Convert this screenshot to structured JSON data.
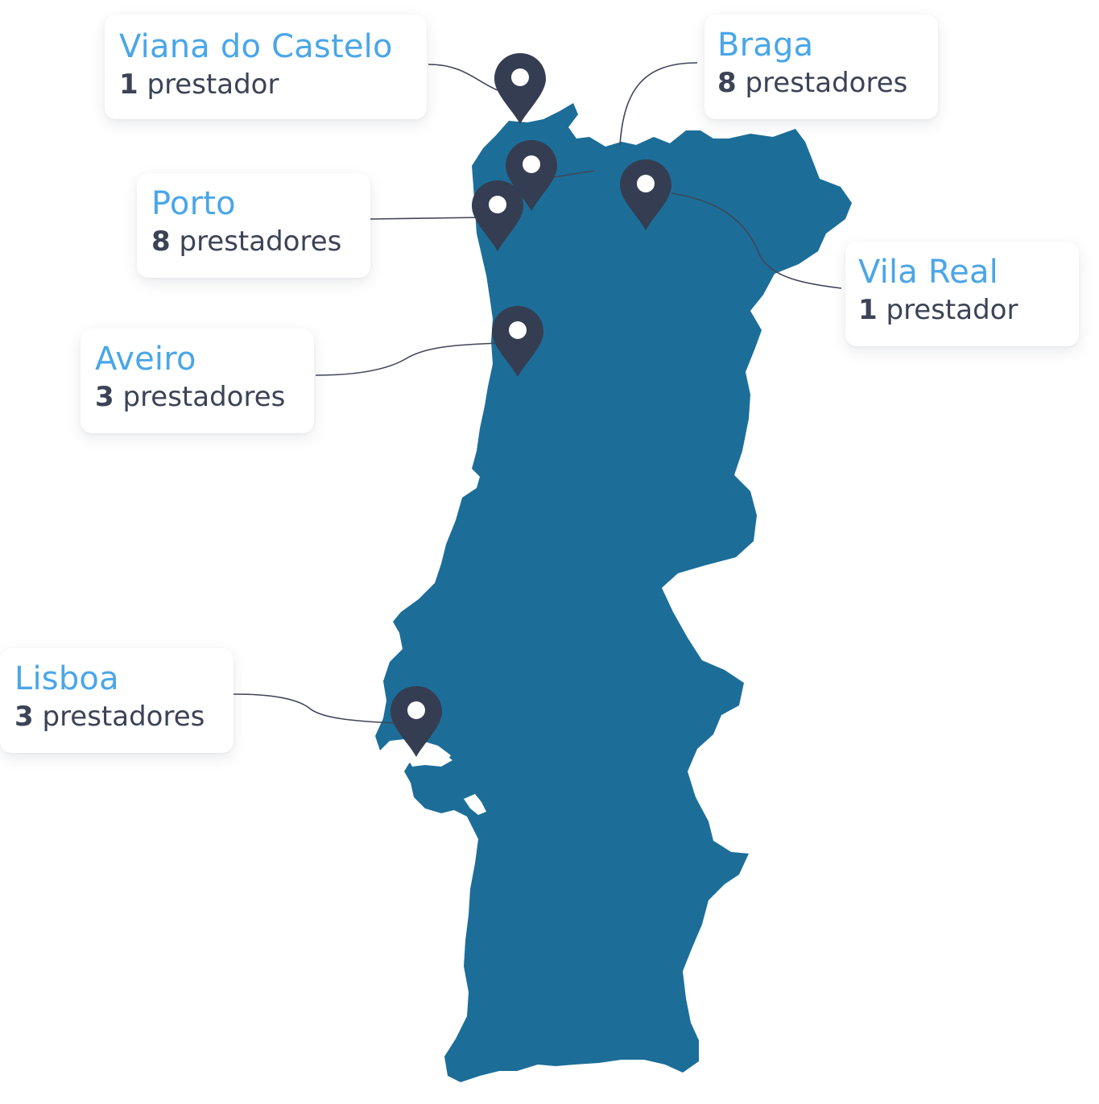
{
  "colors": {
    "land": "#1c6e98",
    "pin": "#353d52",
    "pin_dot": "#ffffff",
    "leader": "#3f4659",
    "city_text": "#4aa6e8",
    "count_text": "#3c4356",
    "card": "#ffffff"
  },
  "locations": [
    {
      "id": "viana",
      "city": "Viana do Castelo",
      "count": "1",
      "unit": "prestador",
      "icon": "map-pin-icon"
    },
    {
      "id": "braga",
      "city": "Braga",
      "count": "8",
      "unit": "prestadores",
      "icon": "map-pin-icon"
    },
    {
      "id": "porto",
      "city": "Porto",
      "count": "8",
      "unit": "prestadores",
      "icon": "map-pin-icon"
    },
    {
      "id": "vila",
      "city": "Vila Real",
      "count": "1",
      "unit": "prestador",
      "icon": "map-pin-icon"
    },
    {
      "id": "aveiro",
      "city": "Aveiro",
      "count": "3",
      "unit": "prestadores",
      "icon": "map-pin-icon"
    },
    {
      "id": "lisboa",
      "city": "Lisboa",
      "count": "3",
      "unit": "prestadores",
      "icon": "map-pin-icon"
    }
  ]
}
